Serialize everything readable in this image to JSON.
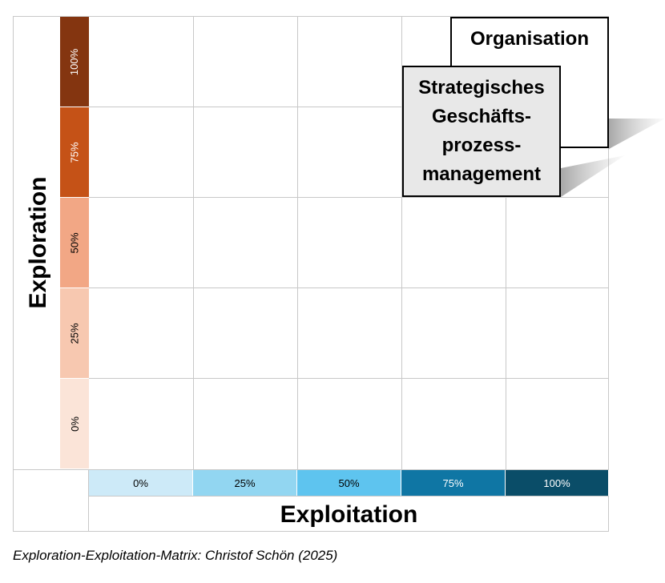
{
  "matrix": {
    "y_axis_label": "Exploration",
    "x_axis_label": "Exploitation",
    "y_scale": [
      {
        "label": "100%",
        "color": "#843510",
        "text_color": "#ffffff"
      },
      {
        "label": "75%",
        "color": "#c55217",
        "text_color": "#ffffff"
      },
      {
        "label": "50%",
        "color": "#f2a785",
        "text_color": "#000000"
      },
      {
        "label": "25%",
        "color": "#f7c8b0",
        "text_color": "#000000"
      },
      {
        "label": "0%",
        "color": "#fbe4d8",
        "text_color": "#000000"
      }
    ],
    "x_scale": [
      {
        "label": "0%",
        "color": "#cdeaf8",
        "text_color": "#000000"
      },
      {
        "label": "25%",
        "color": "#92d6f1",
        "text_color": "#000000"
      },
      {
        "label": "50%",
        "color": "#5ec4ef",
        "text_color": "#000000"
      },
      {
        "label": "75%",
        "color": "#0f76a4",
        "text_color": "#ffffff"
      },
      {
        "label": "100%",
        "color": "#0a4d68",
        "text_color": "#ffffff"
      }
    ]
  },
  "boxes": {
    "organisation": "Organisation",
    "sgpm_lines": [
      "Strategisches",
      "Geschäfts-",
      "prozess-",
      "management"
    ]
  },
  "caption": "Exploration-Exploitation-Matrix: Christof Schön (2025)"
}
